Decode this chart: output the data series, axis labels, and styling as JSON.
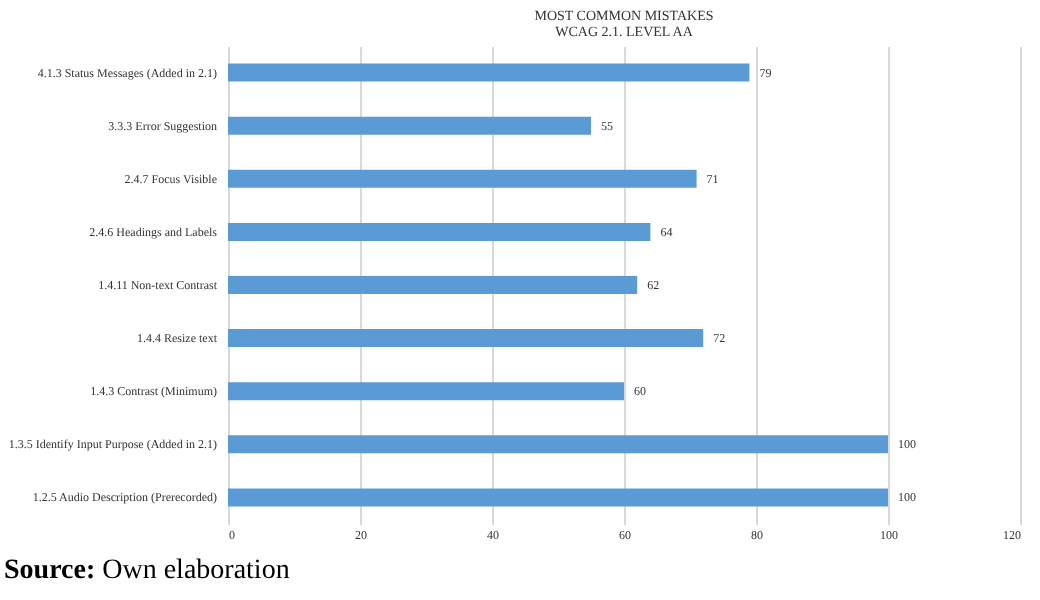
{
  "chart_data": {
    "type": "bar",
    "orientation": "horizontal",
    "title": "MOST COMMON MISTAKES",
    "subtitle": "WCAG 2.1. LEVEL AA",
    "categories": [
      "4.1.3 Status Messages  (Added in 2.1)",
      "3.3.3 Error Suggestion",
      "2.4.7 Focus Visible",
      "2.4.6 Headings and Labels",
      "1.4.11 Non-text Contrast",
      "1.4.4 Resize text",
      "1.4.3 Contrast (Minimum)",
      "1.3.5 Identify Input Purpose  (Added in 2.1)",
      "1.2.5 Audio Description (Prerecorded)"
    ],
    "values": [
      79,
      55,
      71,
      64,
      62,
      72,
      60,
      100,
      100
    ],
    "color": "#5b9bd5",
    "xlim": [
      0,
      120
    ],
    "xticks": [
      0,
      20,
      40,
      60,
      80,
      100,
      120
    ],
    "grid": "x",
    "data_labels": true,
    "annotations": [
      "Source: Own elaboration"
    ]
  }
}
